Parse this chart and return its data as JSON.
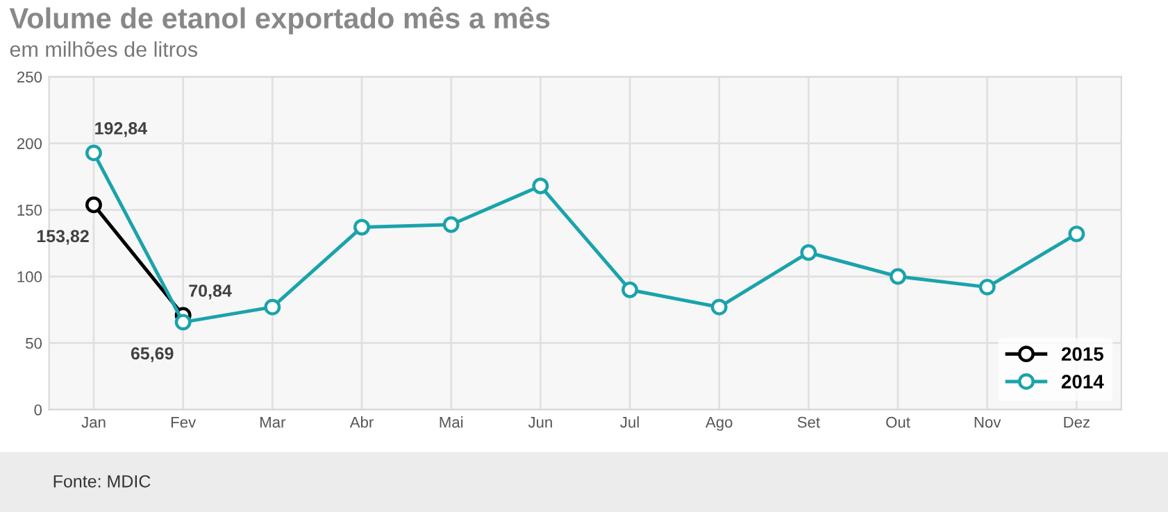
{
  "chart_data": {
    "type": "line",
    "title": "Volume de etanol exportado mês a mês",
    "subtitle": "em milhões de litros",
    "categories": [
      "Jan",
      "Fev",
      "Mar",
      "Abr",
      "Mai",
      "Jun",
      "Jul",
      "Ago",
      "Set",
      "Out",
      "Nov",
      "Dez"
    ],
    "series": [
      {
        "name": "2015",
        "color": "#000000",
        "values": [
          153.82,
          70.84,
          null,
          null,
          null,
          null,
          null,
          null,
          null,
          null,
          null,
          null
        ],
        "value_labels": [
          "153,82",
          "70,84",
          null,
          null,
          null,
          null,
          null,
          null,
          null,
          null,
          null,
          null
        ]
      },
      {
        "name": "2014",
        "color": "#1aa3ab",
        "values": [
          192.84,
          65.69,
          77,
          137,
          139,
          168,
          90,
          77,
          118,
          100,
          92,
          132
        ],
        "value_labels": [
          "192,84",
          "65,69",
          null,
          null,
          null,
          null,
          null,
          null,
          null,
          null,
          null,
          null
        ]
      }
    ],
    "ylim": [
      0,
      250
    ],
    "yticks": [
      0,
      50,
      100,
      150,
      200,
      250
    ],
    "grid": true,
    "legend": "bottom right",
    "marker": "circle",
    "line_style": "solid",
    "annotations": [
      "Fonte: MDIC"
    ]
  }
}
